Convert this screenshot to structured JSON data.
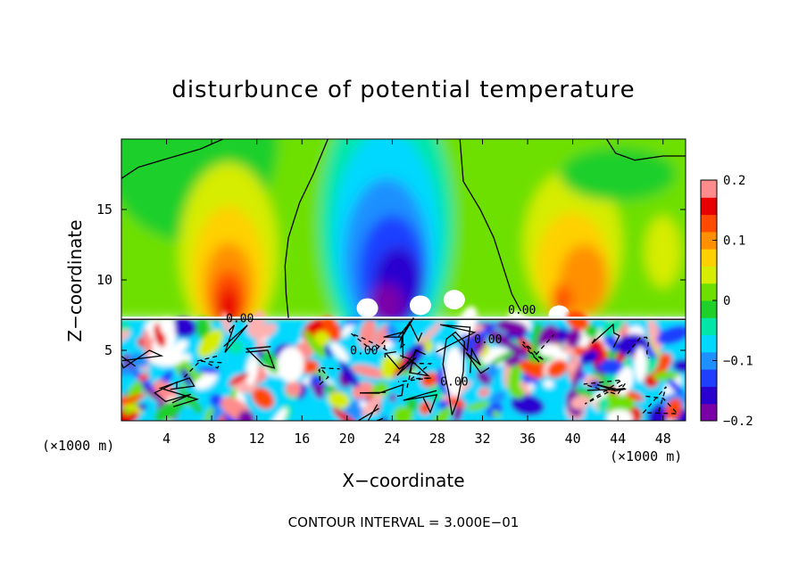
{
  "chart_data": {
    "type": "heatmap",
    "title": "disturbunce of potential temperature",
    "xlabel": "X−coordinate",
    "ylabel": "Z−coordinate",
    "x_unit_label": "(×1000 m)",
    "footer": "CONTOUR INTERVAL = 3.000E−01",
    "xlim": [
      0,
      50
    ],
    "ylim": [
      0,
      20
    ],
    "x_ticks": [
      4,
      8,
      12,
      16,
      20,
      24,
      28,
      32,
      36,
      40,
      44,
      48
    ],
    "y_ticks": [
      5,
      10,
      15
    ],
    "colorbar": {
      "range": [
        -0.2,
        0.2
      ],
      "ticks": [
        "0.2",
        "0.1",
        "0",
        "−0.1",
        "−0.2"
      ],
      "colors": [
        "#7a00a8",
        "#2a00d0",
        "#1f3fff",
        "#1e90ff",
        "#00d8ff",
        "#00e6a8",
        "#1fcf2a",
        "#6ee000",
        "#d6ec00",
        "#ffd000",
        "#ff9000",
        "#ff4a00",
        "#e80000",
        "#ff8c8c"
      ]
    },
    "contour_labels": [
      {
        "text": "0.00",
        "x": 10.5,
        "z": 7.0
      },
      {
        "text": "0.00",
        "x": 35.5,
        "z": 7.6
      },
      {
        "text": "0.00",
        "x": 32.5,
        "z": 5.5
      },
      {
        "text": "0.00",
        "x": 21.5,
        "z": 4.7
      },
      {
        "text": "0.00",
        "x": 29.5,
        "z": 2.5
      }
    ],
    "inversion_height": 7.2
  }
}
